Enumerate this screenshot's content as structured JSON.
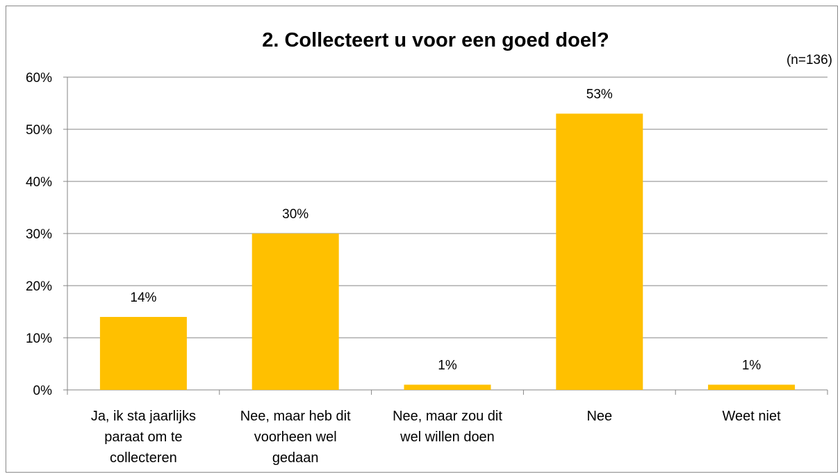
{
  "chart_data": {
    "type": "bar",
    "title": "2. Collecteert u voor een goed doel?",
    "note": "(n=136)",
    "categories": [
      "Ja, ik sta jaarlijks paraat om te collecteren",
      "Nee, maar heb dit voorheen wel gedaan",
      "Nee, maar zou dit wel willen doen",
      "Nee",
      "Weet niet"
    ],
    "values": [
      14,
      30,
      1,
      53,
      1
    ],
    "data_labels": [
      "14%",
      "30%",
      "1%",
      "53%",
      "1%"
    ],
    "xlabel": "",
    "ylabel": "",
    "ylim": [
      0,
      60
    ],
    "yticks": [
      "0%",
      "10%",
      "20%",
      "30%",
      "40%",
      "50%",
      "60%"
    ],
    "grid": true,
    "legend": "none",
    "bar_color": "#FFC000"
  }
}
